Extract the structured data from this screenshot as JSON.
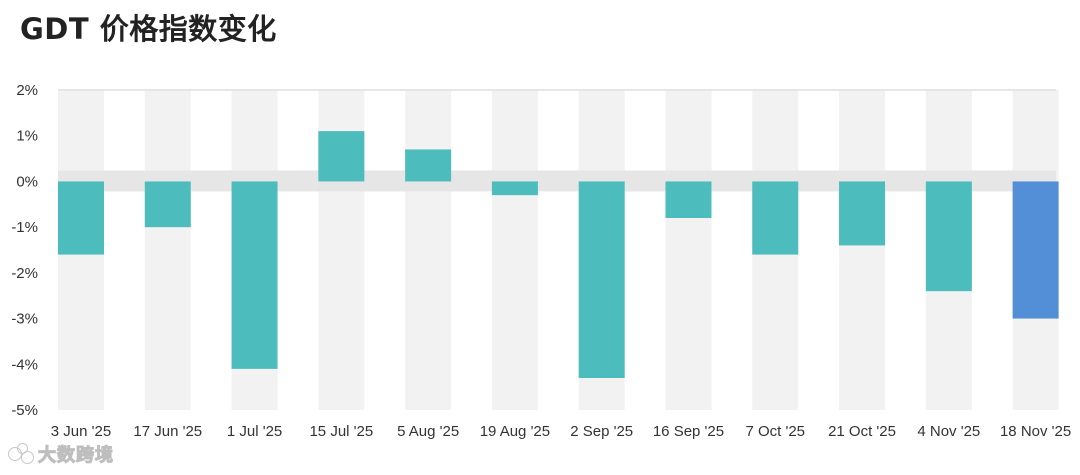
{
  "chart_data": {
    "type": "bar",
    "title": "GDT 价格指数变化",
    "categories": [
      "3 Jun '25",
      "17 Jun '25",
      "1 Jul '25",
      "15 Jul '25",
      "5 Aug '25",
      "19 Aug '25",
      "2 Sep '25",
      "16 Sep '25",
      "7 Oct '25",
      "21 Oct '25",
      "4 Nov '25",
      "18 Nov '25"
    ],
    "values": [
      -1.6,
      -1.0,
      -4.1,
      1.1,
      0.7,
      -0.3,
      -4.3,
      -0.8,
      -1.6,
      -1.4,
      -2.4,
      -3.0
    ],
    "ylim": [
      -5,
      2
    ],
    "yticks": [
      2,
      1,
      0,
      -1,
      -2,
      -3,
      -4,
      -5
    ],
    "ytick_labels": [
      "2%",
      "1%",
      "0%",
      "-1%",
      "-2%",
      "-3%",
      "-4%",
      "-5%"
    ],
    "xlabel": "",
    "ylabel": "",
    "grid": "alternating column bands",
    "colors": {
      "bar": "#4dbcbc",
      "highlight_bar": "#528fd6",
      "band": "#f2f2f2",
      "zero_band": "#e6e6e6"
    },
    "highlight_index": 11
  },
  "watermark": {
    "text": "大数跨境",
    "icon": "bubble-logo-icon"
  }
}
